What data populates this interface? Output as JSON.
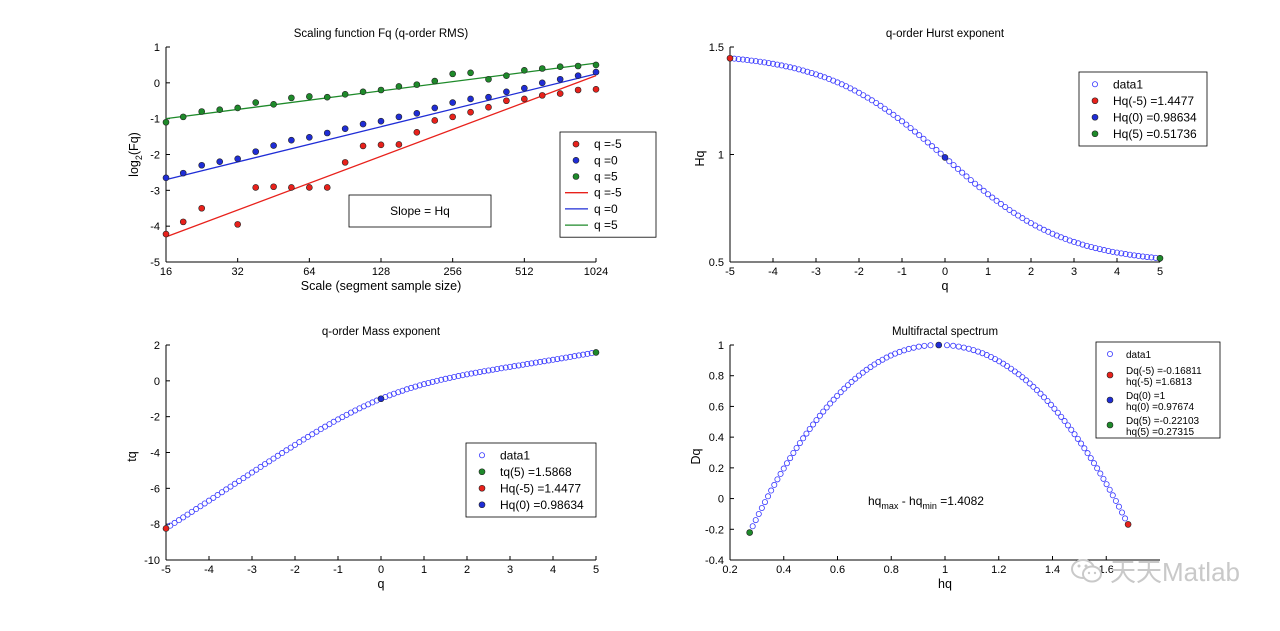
{
  "watermark": {
    "text": "天天Matlab",
    "icon": "wechat-icon"
  },
  "colors": {
    "red": "#e8211b",
    "blue": "#1f2dd6",
    "green": "#1e8a2a",
    "hollow": "#3a3aff",
    "dark": "#000000"
  },
  "chart_data": [
    {
      "id": "p1",
      "type": "scatter",
      "title": "Scaling function Fq (q-order RMS)",
      "xlabel": "Scale (segment sample size)",
      "ylabel_main": "log",
      "ylabel_sub": "2",
      "ylabel_tail": "(Fq)",
      "xscale": "log2",
      "xlim": [
        16,
        1024
      ],
      "ylim": [
        -5,
        1
      ],
      "xticks": [
        16,
        32,
        64,
        128,
        256,
        512,
        1024
      ],
      "xtick_labels": [
        "16",
        "32",
        "64",
        "128",
        "256",
        "512",
        "1024"
      ],
      "yticks": [
        1,
        0,
        -1,
        -2,
        -3,
        -4,
        -5
      ],
      "ytick_labels": [
        "1",
        "0",
        "-1",
        "-2",
        "-3",
        "-4",
        "-5"
      ],
      "annotation": "Slope = Hq",
      "x": [
        16,
        18.9,
        22.6,
        26.9,
        32,
        38.1,
        45.3,
        53.8,
        64,
        76.1,
        90.5,
        107.6,
        128,
        152.2,
        181,
        215.3,
        256,
        304.4,
        362,
        430.5,
        512,
        608.9,
        724.1,
        861.1,
        1024
      ],
      "series": [
        {
          "name": "q =-5",
          "color": "red",
          "values": [
            -4.22,
            -3.88,
            -3.5,
            null,
            -3.95,
            -2.92,
            -2.9,
            -2.92,
            -2.92,
            -2.92,
            -2.22,
            -1.76,
            -1.73,
            -1.72,
            -1.38,
            -1.05,
            -0.95,
            -0.82,
            -0.68,
            -0.5,
            -0.45,
            -0.35,
            -0.3,
            -0.2,
            -0.18
          ]
        },
        {
          "name": "q =0",
          "color": "blue",
          "values": [
            -2.65,
            -2.52,
            -2.3,
            -2.2,
            -2.12,
            -1.92,
            -1.75,
            -1.6,
            -1.52,
            -1.4,
            -1.28,
            -1.15,
            -1.07,
            -0.95,
            -0.85,
            -0.7,
            -0.55,
            -0.45,
            -0.4,
            -0.25,
            -0.15,
            0.0,
            0.1,
            0.2,
            0.3
          ]
        },
        {
          "name": "q =5",
          "color": "green",
          "values": [
            -1.1,
            -0.95,
            -0.8,
            -0.75,
            -0.7,
            -0.55,
            -0.6,
            -0.42,
            -0.38,
            -0.4,
            -0.32,
            -0.25,
            -0.2,
            -0.1,
            -0.05,
            0.05,
            0.25,
            0.28,
            0.1,
            0.2,
            0.35,
            0.4,
            0.45,
            0.47,
            0.5
          ]
        }
      ],
      "fits": [
        {
          "name": "q =-5",
          "color": "red",
          "y_at_xmin": -4.3,
          "y_at_xmax": 0.2
        },
        {
          "name": "q =0",
          "color": "blue",
          "y_at_xmin": -2.7,
          "y_at_xmax": 0.25
        },
        {
          "name": "q =5",
          "color": "green",
          "y_at_xmin": -1.0,
          "y_at_xmax": 0.55
        }
      ],
      "legend": {
        "placement": "right-middle",
        "entries": [
          "q =-5",
          "q =0",
          "q =5",
          "q =-5",
          "q =0",
          "q =5"
        ]
      }
    },
    {
      "id": "p2",
      "type": "scatter",
      "title": "q-order Hurst exponent",
      "xlabel": "q",
      "ylabel": "Hq",
      "xlim": [
        -5,
        5
      ],
      "ylim": [
        0.5,
        1.5
      ],
      "xticks": [
        -5,
        -4,
        -3,
        -2,
        -1,
        0,
        1,
        2,
        3,
        4,
        5
      ],
      "xtick_labels": [
        "-5",
        "-4",
        "-3",
        "-2",
        "-1",
        "0",
        "1",
        "2",
        "3",
        "4",
        "5"
      ],
      "yticks": [
        1.5,
        1,
        0.5
      ],
      "ytick_labels": [
        "1.5",
        "1",
        "0.5"
      ],
      "curve": {
        "name": "data1",
        "formula": "H(q)=0.98634-0.47*tanh(0.3*q)+0.06*tanh(...)",
        "q_start": -5,
        "q_end": 5,
        "n": 101,
        "sample_q": [
          -5,
          -4,
          -3,
          -2,
          -1,
          0,
          1,
          2,
          3,
          4,
          5
        ],
        "sample_h": [
          1.4477,
          1.41,
          1.35,
          1.26,
          1.13,
          0.98634,
          0.85,
          0.73,
          0.63,
          0.56,
          0.51736
        ]
      },
      "highlights": [
        {
          "q": -5,
          "value": 1.4477,
          "color": "red"
        },
        {
          "q": 0,
          "value": 0.98634,
          "color": "blue"
        },
        {
          "q": 5,
          "value": 0.51736,
          "color": "green"
        }
      ],
      "legend": {
        "placement": "top-right",
        "entries": [
          "data1",
          "Hq(-5) =1.4477",
          "Hq(0) =0.98634",
          "Hq(5) =0.51736"
        ]
      }
    },
    {
      "id": "p3",
      "type": "scatter",
      "title": "q-order Mass exponent",
      "xlabel": "q",
      "ylabel": "tq",
      "xlim": [
        -5,
        5
      ],
      "ylim": [
        -10,
        2
      ],
      "xticks": [
        -5,
        -4,
        -3,
        -2,
        -1,
        0,
        1,
        2,
        3,
        4,
        5
      ],
      "xtick_labels": [
        "-5",
        "-4",
        "-3",
        "-2",
        "-1",
        "0",
        "1",
        "2",
        "3",
        "4",
        "5"
      ],
      "yticks": [
        2,
        0,
        -2,
        -4,
        -6,
        -8,
        -10
      ],
      "ytick_labels": [
        "2",
        "0",
        "-2",
        "-4",
        "-6",
        "-8",
        "-10"
      ],
      "curve": {
        "name": "data1",
        "q_start": -5,
        "q_end": 5,
        "n": 101
      },
      "highlights": [
        {
          "q": 5,
          "value": 1.5868,
          "color": "green"
        },
        {
          "q": -5,
          "value": -8.2385,
          "color": "red"
        },
        {
          "q": 0,
          "value": -1.0,
          "color": "blue"
        }
      ],
      "legend": {
        "placement": "bottom-right",
        "entries": [
          "data1",
          "tq(5) =1.5868",
          "Hq(-5) =1.4477",
          "Hq(0) =0.98634"
        ]
      }
    },
    {
      "id": "p4",
      "type": "scatter",
      "title": "Multifractal spectrum",
      "xlabel": "hq",
      "ylabel": "Dq",
      "xlim": [
        0.2,
        1.8
      ],
      "ylim": [
        -0.4,
        1
      ],
      "xticks": [
        0.2,
        0.4,
        0.6,
        0.8,
        1,
        1.2,
        1.4,
        1.6
      ],
      "xtick_labels": [
        "0.2",
        "0.4",
        "0.6",
        "0.8",
        "1",
        "1.2",
        "1.4",
        "1.6"
      ],
      "yticks": [
        1,
        0.8,
        0.6,
        0.4,
        0.2,
        0,
        -0.2,
        -0.4
      ],
      "ytick_labels": [
        "1",
        "0.8",
        "0.6",
        "0.4",
        "0.2",
        "0",
        "-0.2",
        "-0.4"
      ],
      "annotation": {
        "a": "hq",
        "a_sub": "max",
        "b": " - hq",
        "b_sub": "min",
        "c": " =1.4082"
      },
      "curve": {
        "name": "data1",
        "n": 101
      },
      "highlights": [
        {
          "hq": 1.6813,
          "value": -0.16811,
          "color": "red"
        },
        {
          "hq": 0.97674,
          "value": 1,
          "color": "blue"
        },
        {
          "hq": 0.27315,
          "value": -0.22103,
          "color": "green"
        }
      ],
      "legend": {
        "placement": "top-right",
        "entries": [
          "data1",
          "Dq(-5) =-0.16811",
          "hq(-5) =1.6813",
          "Dq(0) =1",
          "hq(0) =0.97674",
          "Dq(5) =-0.22103",
          "hq(5) =0.27315"
        ]
      }
    }
  ]
}
